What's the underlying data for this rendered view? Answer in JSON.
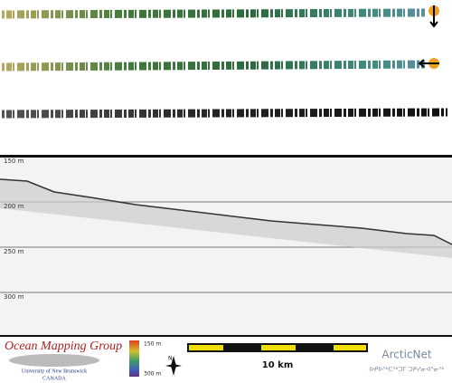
{
  "depth_labels": [
    "150 m",
    "200 m",
    "250 m",
    "300 m"
  ],
  "footer": {
    "group": "Ocean Mapping Group",
    "university": "University of New Brunswick",
    "country": "CANADA",
    "colorbar_top": "150 m",
    "colorbar_bottom": "300 m",
    "north": "N",
    "scale": "10 km",
    "partner": "ArcticNet",
    "partner_subtitle": "ᐅᑭᐅᖅᑕᖅᑐᒥ ᑐᑭᓯᓂᐊᕐᓂᖅ"
  }
}
